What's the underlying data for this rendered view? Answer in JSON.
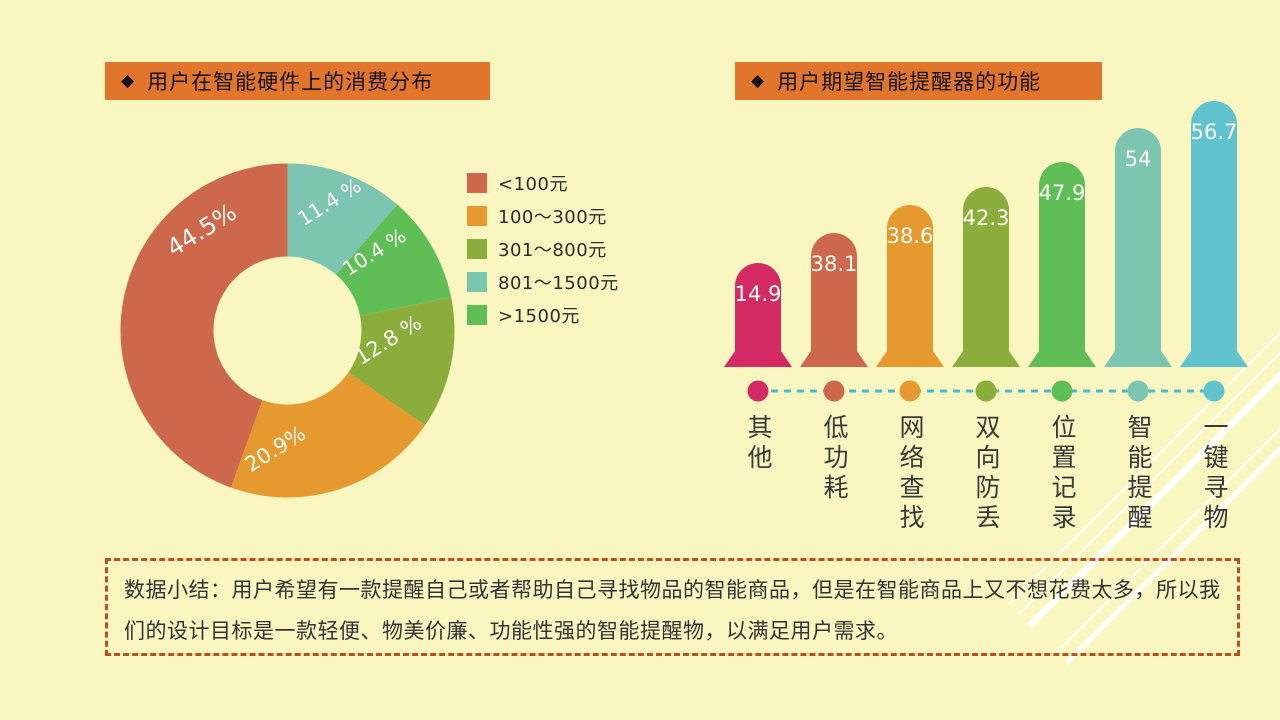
{
  "page": {
    "background": "#faf6c0",
    "title_bar_color": "#e2752c",
    "diamond_icon": "◆"
  },
  "titles": {
    "left": {
      "icon": "◆",
      "text": "用户在智能硬件上的消费分布"
    },
    "right": {
      "icon": "◆",
      "text": "用户期望智能提醒器的功能"
    }
  },
  "chart_data": [
    {
      "type": "pie",
      "title": "用户在智能硬件上的消费分布",
      "donut": true,
      "legend_position": "right",
      "start_angle": "12-oclock",
      "series": [
        {
          "label": "<100元",
          "value": 44.5,
          "display": "44.5%",
          "color": "#cd684d"
        },
        {
          "label": "100〜300元",
          "value": 20.9,
          "display": "20.9%",
          "color": "#e5992f"
        },
        {
          "label": "301〜800元",
          "value": 12.8,
          "display": "12.8 %",
          "color": "#8aad3c"
        },
        {
          "label": "801〜1500元",
          "value": 11.4,
          "display": "11.4 %",
          "color": "#7cc5b1"
        },
        {
          "label": ">1500元",
          "value": 10.4,
          "display": "10.4 %",
          "color": "#5fbe56"
        }
      ]
    },
    {
      "type": "bar",
      "title": "用户期望智能提醒器的功能",
      "categories": [
        "其他",
        "低功耗",
        "网络查找",
        "双向防丢",
        "位置记录",
        "智能提醒",
        "一键寻物"
      ],
      "values": [
        14.9,
        38.1,
        38.6,
        42.3,
        47.9,
        54,
        56.7
      ],
      "value_labels": [
        "14.9",
        "38.1",
        "38.6",
        "42.3",
        "47.9",
        "54",
        "56.7"
      ],
      "colors": [
        "#d42a63",
        "#cd684d",
        "#e5992f",
        "#8aad3c",
        "#5fbe56",
        "#7cc5b1",
        "#60c3cd"
      ],
      "connector_color": "#45bad7",
      "grid": false,
      "value_label_color": "#fdfdf5"
    }
  ],
  "summary": {
    "text": "数据小结：用户希望有一款提醒自己或者帮助自己寻找物品的智能商品，但是在智能商品上又不想花费太多，所以我们的设计目标是一款轻便、物美价廉、功能性强的智能提醒物，以满足用户需求。",
    "border_color": "#bf4e1d"
  }
}
